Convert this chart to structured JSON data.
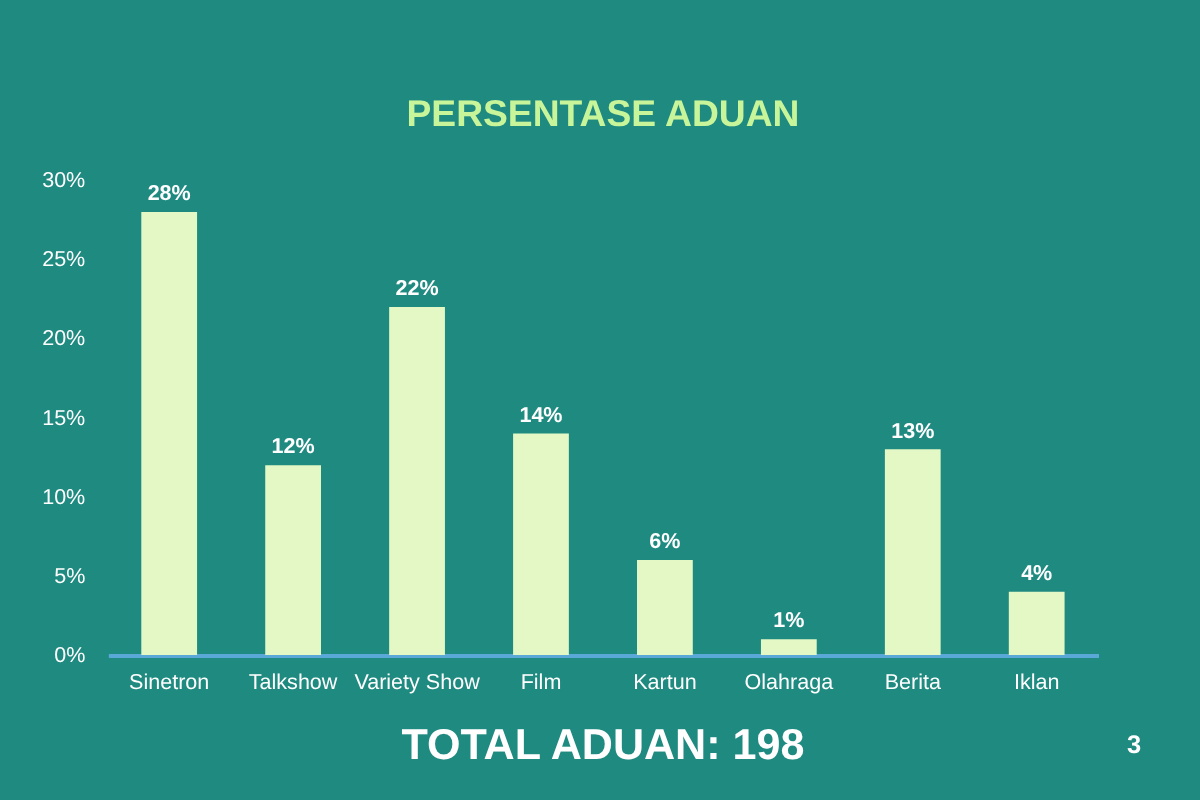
{
  "chart_data": {
    "type": "bar",
    "title": "PERSENTASE ADUAN",
    "categories": [
      "Sinetron",
      "Talkshow",
      "Variety Show",
      "Film",
      "Kartun",
      "Olahraga",
      "Berita",
      "Iklan"
    ],
    "values": [
      28,
      12,
      22,
      14,
      6,
      1,
      13,
      4
    ],
    "value_labels": [
      "28%",
      "12%",
      "22%",
      "14%",
      "6%",
      "1%",
      "13%",
      "4%"
    ],
    "color": "#e4f8c6",
    "ylim": [
      0,
      30
    ],
    "yticks": [
      {
        "value": 0,
        "label": "0%"
      },
      {
        "value": 5,
        "label": "5%"
      },
      {
        "value": 10,
        "label": "10%"
      },
      {
        "value": 15,
        "label": "15%"
      },
      {
        "value": 20,
        "label": "20%"
      },
      {
        "value": 25,
        "label": "25%"
      },
      {
        "value": 30,
        "label": "30%"
      }
    ],
    "grid": false,
    "annotations": [
      "TOTAL ADUAN: 198",
      "3"
    ]
  }
}
